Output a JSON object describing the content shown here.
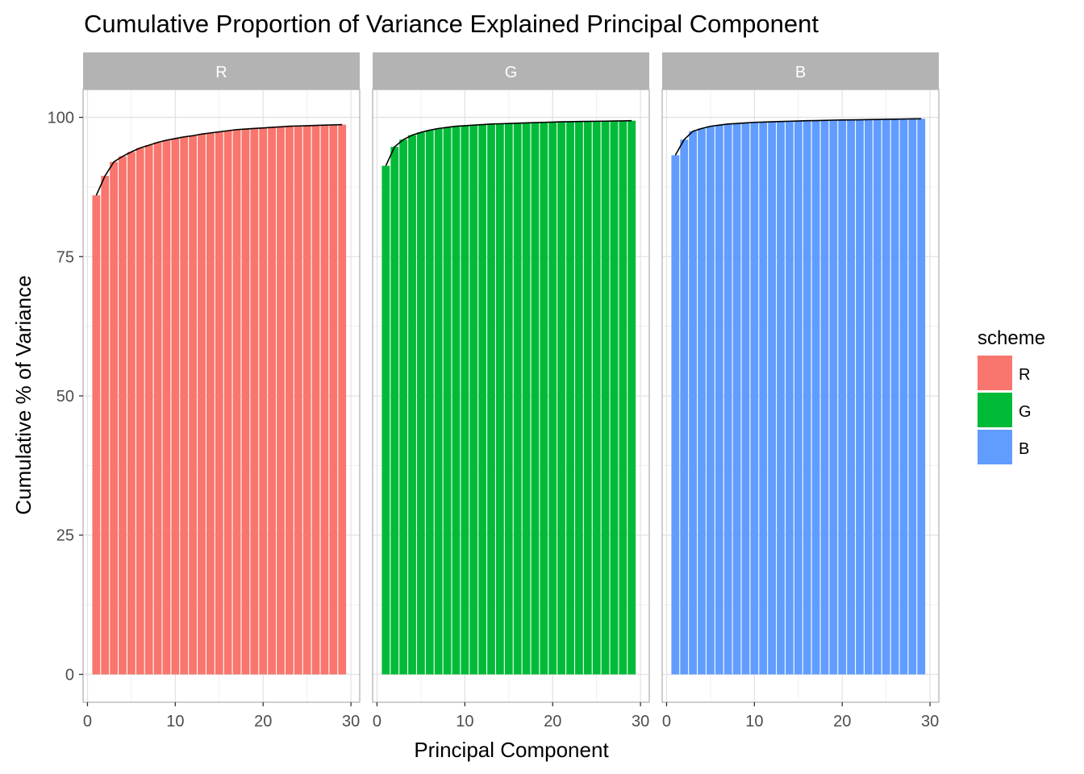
{
  "chart_data": {
    "type": "bar",
    "title": "Cumulative Proportion of Variance Explained Principal Component",
    "xlabel": "Principal Component",
    "ylabel": "Cumulative % of Variance",
    "xlim": [
      -0.5,
      31
    ],
    "ylim": [
      -5,
      105
    ],
    "x_ticks": [
      0,
      10,
      20,
      30
    ],
    "y_ticks": [
      0,
      25,
      50,
      75,
      100
    ],
    "grid": true,
    "overlay": "cumulative line over bars (black)",
    "legend": {
      "title": "scheme",
      "placement": "right",
      "entries": [
        {
          "label": "R",
          "color": "#F8766D"
        },
        {
          "label": "G",
          "color": "#00BA38"
        },
        {
          "label": "B",
          "color": "#619CFF"
        }
      ]
    },
    "x": [
      1,
      2,
      3,
      4,
      5,
      6,
      7,
      8,
      9,
      10,
      11,
      12,
      13,
      14,
      15,
      16,
      17,
      18,
      19,
      20,
      21,
      22,
      23,
      24,
      25,
      26,
      27,
      28,
      29
    ],
    "panels": [
      {
        "name": "R",
        "color": "#F8766D",
        "values": [
          86.0,
          89.5,
          92.0,
          93.0,
          93.8,
          94.5,
          95.0,
          95.5,
          95.9,
          96.2,
          96.5,
          96.7,
          97.0,
          97.2,
          97.4,
          97.6,
          97.8,
          97.9,
          98.0,
          98.1,
          98.2,
          98.3,
          98.4,
          98.45,
          98.5,
          98.55,
          98.6,
          98.65,
          98.7
        ]
      },
      {
        "name": "G",
        "color": "#00BA38",
        "values": [
          91.3,
          94.7,
          96.0,
          96.8,
          97.3,
          97.7,
          98.0,
          98.2,
          98.4,
          98.5,
          98.6,
          98.7,
          98.8,
          98.85,
          98.9,
          98.95,
          99.0,
          99.05,
          99.1,
          99.15,
          99.2,
          99.22,
          99.25,
          99.28,
          99.3,
          99.32,
          99.35,
          99.37,
          99.4
        ]
      },
      {
        "name": "B",
        "color": "#619CFF",
        "values": [
          93.2,
          96.0,
          97.5,
          98.0,
          98.4,
          98.6,
          98.8,
          98.9,
          99.0,
          99.1,
          99.15,
          99.2,
          99.25,
          99.3,
          99.35,
          99.4,
          99.42,
          99.45,
          99.5,
          99.52,
          99.55,
          99.57,
          99.6,
          99.62,
          99.65,
          99.67,
          99.7,
          99.72,
          99.75
        ]
      }
    ]
  }
}
